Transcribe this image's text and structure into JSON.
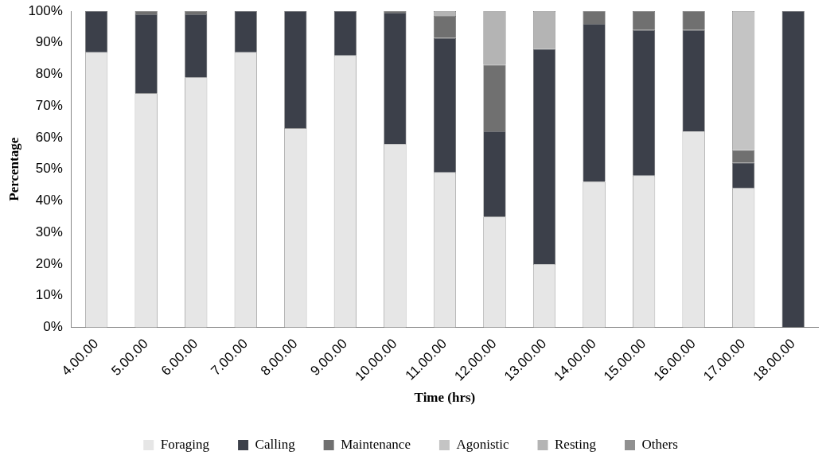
{
  "chart_data": {
    "type": "bar",
    "stacked": true,
    "xlabel": "Time (hrs)",
    "ylabel": "Percentage",
    "categories": [
      "4.00.00",
      "5.00.00",
      "6.00.00",
      "7.00.00",
      "8.00.00",
      "9.00.00",
      "10.00.00",
      "11.00.00",
      "12.00.00",
      "13.00.00",
      "14.00.00",
      "15.00.00",
      "16.00.00",
      "17.00.00",
      "18.00.00"
    ],
    "series": [
      {
        "name": "Foraging",
        "color": "#e6e6e6",
        "values": [
          87,
          74,
          79,
          87,
          63,
          86,
          58,
          49,
          35,
          20,
          46,
          48,
          62,
          44,
          0
        ]
      },
      {
        "name": "Calling",
        "color": "#3c404a",
        "values": [
          13,
          25,
          20,
          13,
          37,
          14,
          41.5,
          42.5,
          27,
          68,
          50,
          46,
          32,
          8,
          100
        ]
      },
      {
        "name": "Maintenance",
        "color": "#707070",
        "values": [
          0,
          1,
          1,
          0,
          0,
          0,
          0.5,
          7,
          21,
          0,
          4,
          6,
          6,
          4,
          0
        ]
      },
      {
        "name": "Agonistic",
        "color": "#c4c4c4",
        "values": [
          0,
          0,
          0,
          0,
          0,
          0,
          0,
          0,
          0,
          0,
          0,
          0,
          0,
          44,
          0
        ]
      },
      {
        "name": "Resting",
        "color": "#b4b4b4",
        "values": [
          0,
          0,
          0,
          0,
          0,
          0,
          0,
          1.5,
          17,
          12,
          0,
          0,
          0,
          0,
          0
        ]
      },
      {
        "name": "Others",
        "color": "#909090",
        "values": [
          0,
          0,
          0,
          0,
          0,
          0,
          0,
          0,
          0,
          0,
          0,
          0,
          0,
          0,
          0
        ]
      }
    ],
    "ylim": [
      0,
      100
    ],
    "yticks": [
      {
        "value": 0,
        "label": "0%"
      },
      {
        "value": 10,
        "label": "10%"
      },
      {
        "value": 20,
        "label": "20%"
      },
      {
        "value": 30,
        "label": "30%"
      },
      {
        "value": 40,
        "label": "40%"
      },
      {
        "value": 50,
        "label": "50%"
      },
      {
        "value": 60,
        "label": "60%"
      },
      {
        "value": 70,
        "label": "70%"
      },
      {
        "value": 80,
        "label": "80%"
      },
      {
        "value": 90,
        "label": "90%"
      },
      {
        "value": 100,
        "label": "100%"
      }
    ],
    "grid": false,
    "legend": "bottom"
  }
}
